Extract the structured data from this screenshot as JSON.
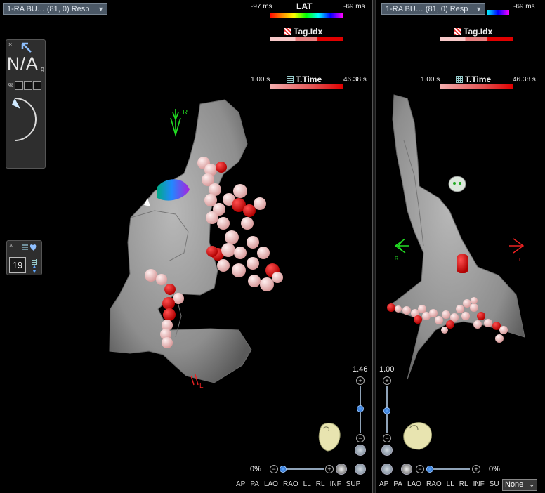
{
  "left_view": {
    "map_selector": "1-RA BU… (81, 0) Resp",
    "lat": {
      "min": "-97 ms",
      "title": "LAT",
      "max": "-69 ms"
    },
    "tag": {
      "title": "Tag.Idx"
    },
    "time": {
      "min": "1.00 s",
      "title": "T.Time",
      "max": "46.38 s"
    },
    "orient_top": "R",
    "orient_bottom": "L",
    "zoom_value": "1.46",
    "zoom_level": 0.55,
    "pct": "0%",
    "views": [
      "AP",
      "PA",
      "LAO",
      "RAO",
      "LL",
      "RL",
      "INF",
      "SUP"
    ]
  },
  "right_view": {
    "map_selector": "1-RA BU… (81, 0) Resp",
    "lat": {
      "max": "-69 ms"
    },
    "tag": {
      "title": "Tag.Idx"
    },
    "time": {
      "min": "1.00 s",
      "title": "T.Time",
      "max": "46.38 s"
    },
    "orient_left": "R",
    "orient_right": "L",
    "zoom_value": "1.00",
    "zoom_level": 0.5,
    "pct": "0%",
    "views": [
      "AP",
      "PA",
      "LAO",
      "RAO",
      "LL",
      "RL",
      "INF",
      "SU"
    ],
    "dropdown": "None"
  },
  "catheter_panel": {
    "close": "×",
    "value": "N/A",
    "sub": "g",
    "pct_label": "%"
  },
  "counter_panel": {
    "close": "×",
    "count": "19"
  },
  "colors": {
    "anatomy": "#9a9a9a",
    "tag_red": "#e00000",
    "tag_pink": "#f5c4c4",
    "orient_green": "#22dd22",
    "orient_red": "#ee2222",
    "accent_blue": "#3b8ff0"
  }
}
